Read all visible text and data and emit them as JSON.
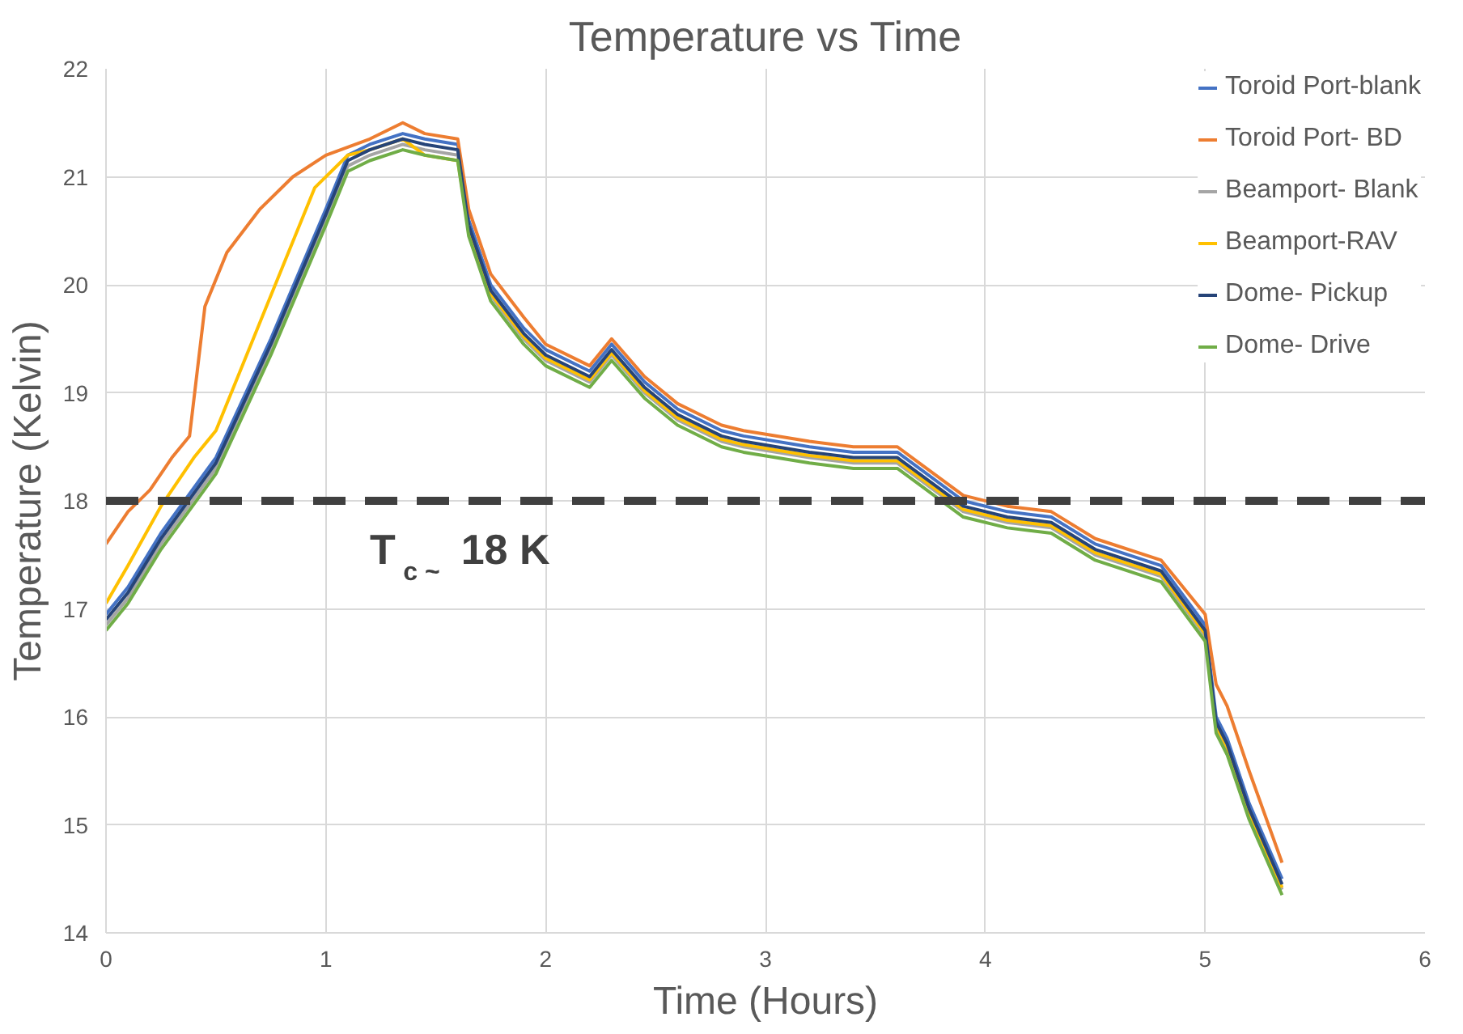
{
  "chart_data": {
    "type": "line",
    "title": "Temperature vs Time",
    "xlabel": "Time (Hours)",
    "ylabel": "Temperature (Kelvin)",
    "xlim": [
      0,
      6
    ],
    "ylim": [
      14,
      22
    ],
    "xticks": [
      0,
      1,
      2,
      3,
      4,
      5,
      6
    ],
    "yticks": [
      14,
      15,
      16,
      17,
      18,
      19,
      20,
      21,
      22
    ],
    "grid": true,
    "legend": "right",
    "marker": "none",
    "line_style": "solid",
    "ref_lines": [
      {
        "axis": "y",
        "value": 18,
        "label": "T$_{c ~}$ 18 K",
        "color": "#404040",
        "line_style": "dashed"
      }
    ],
    "series": [
      {
        "name": "Toroid Port-blank",
        "color": "#4472c4",
        "x": [
          0,
          0.1,
          0.25,
          0.5,
          0.75,
          1.0,
          1.1,
          1.2,
          1.35,
          1.45,
          1.6,
          1.65,
          1.75,
          1.9,
          2.0,
          2.2,
          2.3,
          2.45,
          2.6,
          2.8,
          2.9,
          3.2,
          3.4,
          3.6,
          3.7,
          3.9,
          4.1,
          4.3,
          4.5,
          4.8,
          5.0,
          5.05,
          5.1,
          5.2,
          5.35
        ],
        "values": [
          16.95,
          17.2,
          17.7,
          18.4,
          19.5,
          20.7,
          21.2,
          21.3,
          21.4,
          21.35,
          21.3,
          20.6,
          20.0,
          19.6,
          19.4,
          19.2,
          19.45,
          19.1,
          18.85,
          18.65,
          18.6,
          18.5,
          18.45,
          18.45,
          18.3,
          18.0,
          17.9,
          17.85,
          17.6,
          17.4,
          16.85,
          16.0,
          15.8,
          15.2,
          14.5
        ]
      },
      {
        "name": "Toroid Port- BD",
        "color": "#ed7d31",
        "x": [
          0,
          0.1,
          0.2,
          0.3,
          0.38,
          0.45,
          0.55,
          0.7,
          0.85,
          1.0,
          1.2,
          1.35,
          1.45,
          1.6,
          1.65,
          1.75,
          1.9,
          2.0,
          2.2,
          2.3,
          2.45,
          2.6,
          2.8,
          2.9,
          3.2,
          3.4,
          3.6,
          3.7,
          3.9,
          4.1,
          4.3,
          4.5,
          4.8,
          5.0,
          5.05,
          5.1,
          5.2,
          5.35
        ],
        "values": [
          17.6,
          17.9,
          18.1,
          18.4,
          18.6,
          19.8,
          20.3,
          20.7,
          21.0,
          21.2,
          21.35,
          21.5,
          21.4,
          21.35,
          20.7,
          20.1,
          19.7,
          19.45,
          19.25,
          19.5,
          19.15,
          18.9,
          18.7,
          18.65,
          18.55,
          18.5,
          18.5,
          18.35,
          18.05,
          17.95,
          17.9,
          17.65,
          17.45,
          16.95,
          16.3,
          16.1,
          15.5,
          14.65
        ]
      },
      {
        "name": "Beamport- Blank",
        "color": "#a5a5a5",
        "x": [
          0,
          0.1,
          0.25,
          0.5,
          0.75,
          1.0,
          1.1,
          1.2,
          1.35,
          1.45,
          1.6,
          1.65,
          1.75,
          1.9,
          2.0,
          2.2,
          2.3,
          2.45,
          2.6,
          2.8,
          2.9,
          3.2,
          3.4,
          3.6,
          3.7,
          3.9,
          4.1,
          4.3,
          4.5,
          4.8,
          5.0,
          5.05,
          5.1,
          5.2,
          5.35
        ],
        "values": [
          16.85,
          17.1,
          17.6,
          18.3,
          19.4,
          20.6,
          21.1,
          21.2,
          21.3,
          21.25,
          21.2,
          20.5,
          19.9,
          19.5,
          19.3,
          19.1,
          19.35,
          19.0,
          18.75,
          18.55,
          18.5,
          18.4,
          18.35,
          18.35,
          18.2,
          17.9,
          17.8,
          17.75,
          17.5,
          17.3,
          16.75,
          15.9,
          15.7,
          15.1,
          14.4
        ]
      },
      {
        "name": "Beamport-RAV",
        "color": "#ffc000",
        "x": [
          0,
          0.1,
          0.25,
          0.4,
          0.5,
          0.75,
          0.95,
          1.1,
          1.2,
          1.35,
          1.45,
          1.6,
          1.65,
          1.75,
          1.9,
          2.0,
          2.2,
          2.3,
          2.45,
          2.6,
          2.8,
          2.9,
          3.2,
          3.4,
          3.6,
          3.7,
          3.9,
          4.1,
          4.3,
          4.5,
          4.8,
          5.0,
          5.05,
          5.1,
          5.2,
          5.35
        ],
        "values": [
          17.05,
          17.4,
          17.95,
          18.4,
          18.65,
          19.9,
          20.9,
          21.2,
          21.25,
          21.35,
          21.2,
          21.15,
          20.52,
          19.92,
          19.52,
          19.32,
          19.12,
          19.37,
          19.02,
          18.77,
          18.57,
          18.52,
          18.42,
          18.37,
          18.37,
          18.22,
          17.92,
          17.82,
          17.77,
          17.52,
          17.32,
          16.77,
          15.92,
          15.72,
          15.12,
          14.42
        ]
      },
      {
        "name": "Dome- Pickup",
        "color": "#264478",
        "x": [
          0,
          0.1,
          0.25,
          0.5,
          0.75,
          1.0,
          1.1,
          1.2,
          1.35,
          1.45,
          1.6,
          1.65,
          1.75,
          1.9,
          2.0,
          2.2,
          2.3,
          2.45,
          2.6,
          2.8,
          2.9,
          3.2,
          3.4,
          3.6,
          3.7,
          3.9,
          4.1,
          4.3,
          4.5,
          4.8,
          5.0,
          5.05,
          5.1,
          5.2,
          5.35
        ],
        "values": [
          16.9,
          17.15,
          17.65,
          18.35,
          19.45,
          20.65,
          21.15,
          21.25,
          21.35,
          21.3,
          21.25,
          20.55,
          19.95,
          19.55,
          19.35,
          19.15,
          19.4,
          19.05,
          18.8,
          18.6,
          18.55,
          18.45,
          18.4,
          18.4,
          18.25,
          17.95,
          17.85,
          17.8,
          17.55,
          17.35,
          16.8,
          15.95,
          15.75,
          15.15,
          14.45
        ]
      },
      {
        "name": "Dome- Drive",
        "color": "#70ad47",
        "x": [
          0,
          0.1,
          0.25,
          0.5,
          0.75,
          1.0,
          1.1,
          1.2,
          1.35,
          1.45,
          1.6,
          1.65,
          1.75,
          1.9,
          2.0,
          2.2,
          2.3,
          2.45,
          2.6,
          2.8,
          2.9,
          3.2,
          3.4,
          3.6,
          3.7,
          3.9,
          4.1,
          4.3,
          4.5,
          4.8,
          5.0,
          5.05,
          5.1,
          5.2,
          5.35
        ],
        "values": [
          16.8,
          17.05,
          17.55,
          18.25,
          19.35,
          20.55,
          21.05,
          21.15,
          21.25,
          21.2,
          21.15,
          20.45,
          19.85,
          19.45,
          19.25,
          19.05,
          19.3,
          18.95,
          18.7,
          18.5,
          18.45,
          18.35,
          18.3,
          18.3,
          18.15,
          17.85,
          17.75,
          17.7,
          17.45,
          17.25,
          16.7,
          15.85,
          15.65,
          15.05,
          14.35
        ]
      }
    ]
  }
}
